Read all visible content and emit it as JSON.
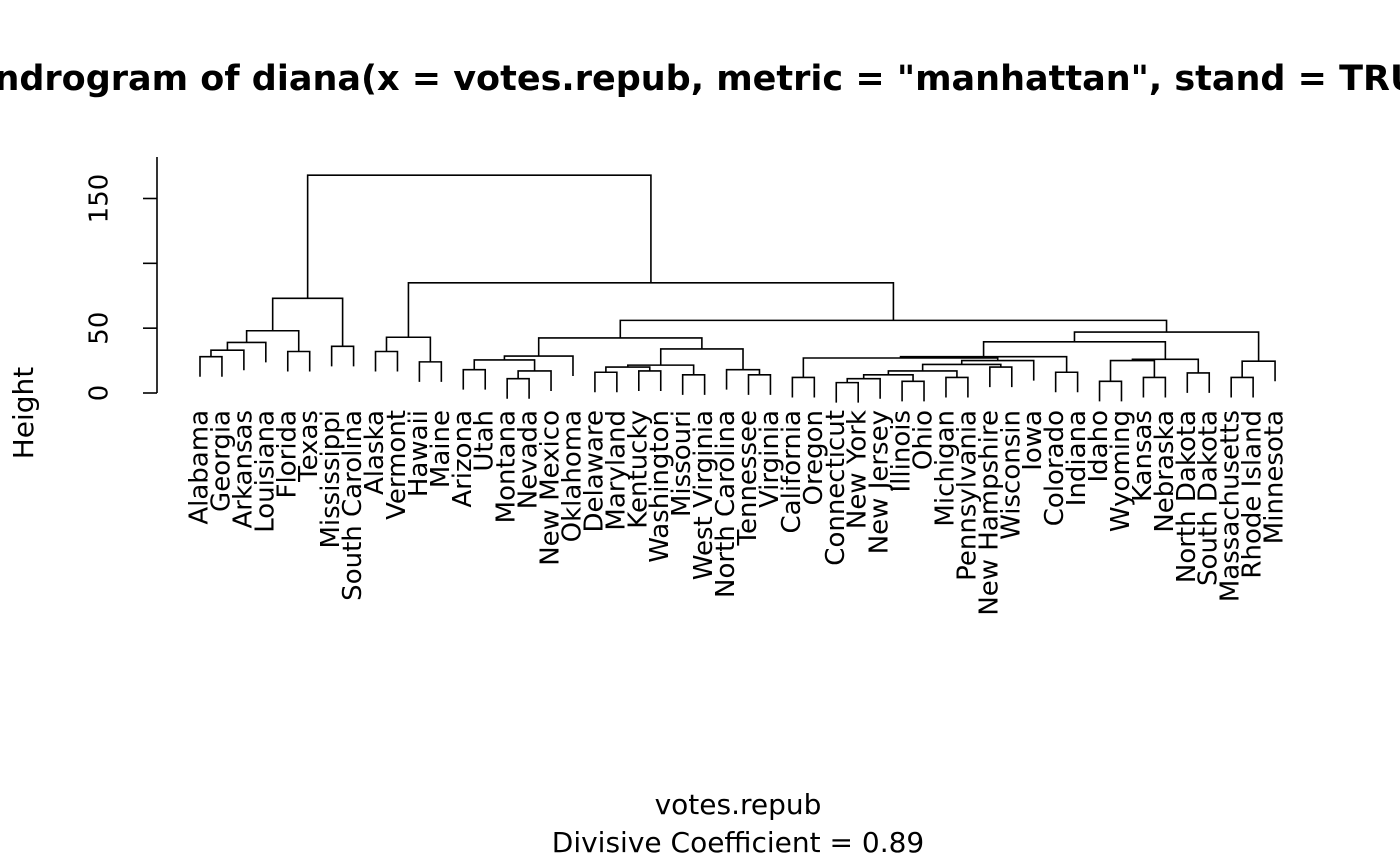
{
  "chart_data": {
    "type": "dendrogram",
    "title": "Dendrogram of  diana(x = votes.repub, metric = \"manhattan\", stand = TRUE)",
    "x_label": "votes.repub",
    "subtitle": "Divisive Coefficient =  0.89",
    "y_label": "Height",
    "ylim": [
      0,
      182
    ],
    "yticks": [
      0,
      50,
      {
        "value": 100,
        "label": null
      },
      150
    ],
    "color": "#000000",
    "tree": {
      "height": 168,
      "children": [
        {
          "height": 73,
          "children": [
            {
              "height": 48,
              "children": [
                {
                  "height": 39,
                  "children": [
                    {
                      "height": 33,
                      "children": [
                        {
                          "height": 28,
                          "children": [
                            {
                              "label": "Alabama"
                            },
                            {
                              "label": "Georgia"
                            }
                          ]
                        },
                        {
                          "label": "Arkansas"
                        }
                      ]
                    },
                    {
                      "label": "Louisiana"
                    }
                  ]
                },
                {
                  "height": 32,
                  "children": [
                    {
                      "label": "Florida"
                    },
                    {
                      "label": "Texas"
                    }
                  ]
                }
              ]
            },
            {
              "height": 36,
              "children": [
                {
                  "label": "Mississippi"
                },
                {
                  "label": "South Carolina"
                }
              ]
            }
          ]
        },
        {
          "height": 85,
          "children": [
            {
              "height": 43,
              "children": [
                {
                  "height": 32,
                  "children": [
                    {
                      "label": "Alaska"
                    },
                    {
                      "label": "Vermont"
                    }
                  ]
                },
                {
                  "height": 24,
                  "children": [
                    {
                      "label": "Hawaii"
                    },
                    {
                      "label": "Maine"
                    }
                  ]
                }
              ]
            },
            {
              "height": 56,
              "children": [
                {
                  "height": 42.5,
                  "children": [
                    {
                      "height": 28.5,
                      "children": [
                        {
                          "height": 25.5,
                          "children": [
                            {
                              "height": 18,
                              "children": [
                                {
                                  "label": "Arizona"
                                },
                                {
                                  "label": "Utah"
                                }
                              ]
                            },
                            {
                              "height": 17,
                              "children": [
                                {
                                  "height": 11,
                                  "children": [
                                    {
                                      "label": "Montana"
                                    },
                                    {
                                      "label": "Nevada"
                                    }
                                  ]
                                },
                                {
                                  "label": "New Mexico"
                                }
                              ]
                            }
                          ]
                        },
                        {
                          "label": "Oklahoma"
                        }
                      ]
                    },
                    {
                      "height": 34,
                      "children": [
                        {
                          "height": 21.5,
                          "children": [
                            {
                              "height": 20,
                              "children": [
                                {
                                  "height": 16,
                                  "children": [
                                    {
                                      "label": "Delaware"
                                    },
                                    {
                                      "label": "Maryland"
                                    }
                                  ]
                                },
                                {
                                  "height": 17,
                                  "children": [
                                    {
                                      "label": "Kentucky"
                                    },
                                    {
                                      "label": "Washington"
                                    }
                                  ]
                                }
                              ]
                            },
                            {
                              "height": 14,
                              "children": [
                                {
                                  "label": "Missouri"
                                },
                                {
                                  "label": "West Virginia"
                                }
                              ]
                            }
                          ]
                        },
                        {
                          "height": 18,
                          "children": [
                            {
                              "label": "North Carolina"
                            },
                            {
                              "height": 14,
                              "children": [
                                {
                                  "label": "Tennessee"
                                },
                                {
                                  "label": "Virginia"
                                }
                              ]
                            }
                          ]
                        }
                      ]
                    }
                  ]
                },
                {
                  "height": 47,
                  "children": [
                    {
                      "height": 39.5,
                      "children": [
                        {
                          "height": 28,
                          "children": [
                            {
                              "height": 27,
                              "children": [
                                {
                                  "height": 12,
                                  "children": [
                                    {
                                      "label": "California"
                                    },
                                    {
                                      "label": "Oregon"
                                    }
                                  ]
                                },
                                {
                                  "height": 25,
                                  "children": [
                                    {
                                      "height": 22,
                                      "children": [
                                        {
                                          "height": 17,
                                          "children": [
                                            {
                                              "height": 14,
                                              "children": [
                                                {
                                                  "height": 11,
                                                  "children": [
                                                    {
                                                      "height": 8,
                                                      "children": [
                                                        {
                                                          "label": "Connecticut"
                                                        },
                                                        {
                                                          "label": "New York"
                                                        }
                                                      ]
                                                    },
                                                    {
                                                      "label": "New Jersey"
                                                    }
                                                  ]
                                                },
                                                {
                                                  "height": 9,
                                                  "children": [
                                                    {
                                                      "label": "Illinois"
                                                    },
                                                    {
                                                      "label": "Ohio"
                                                    }
                                                  ]
                                                }
                                              ]
                                            },
                                            {
                                              "height": 12,
                                              "children": [
                                                {
                                                  "label": "Michigan"
                                                },
                                                {
                                                  "label": "Pennsylvania"
                                                }
                                              ]
                                            }
                                          ]
                                        },
                                        {
                                          "height": 20,
                                          "children": [
                                            {
                                              "label": "New Hampshire"
                                            },
                                            {
                                              "label": "Wisconsin"
                                            }
                                          ]
                                        }
                                      ]
                                    },
                                    {
                                      "label": "Iowa"
                                    }
                                  ]
                                }
                              ]
                            },
                            {
                              "height": 16,
                              "children": [
                                {
                                  "label": "Colorado"
                                },
                                {
                                  "label": "Indiana"
                                }
                              ]
                            }
                          ]
                        },
                        {
                          "height": 26,
                          "children": [
                            {
                              "height": 25,
                              "children": [
                                {
                                  "height": 9,
                                  "children": [
                                    {
                                      "label": "Idaho"
                                    },
                                    {
                                      "label": "Wyoming"
                                    }
                                  ]
                                },
                                {
                                  "height": 12,
                                  "children": [
                                    {
                                      "label": "Kansas"
                                    },
                                    {
                                      "label": "Nebraska"
                                    }
                                  ]
                                }
                              ]
                            },
                            {
                              "height": 15.5,
                              "children": [
                                {
                                  "label": "North Dakota"
                                },
                                {
                                  "label": "South Dakota"
                                }
                              ]
                            }
                          ]
                        }
                      ]
                    },
                    {
                      "height": 24.5,
                      "children": [
                        {
                          "height": 12,
                          "children": [
                            {
                              "label": "Massachusetts"
                            },
                            {
                              "label": "Rhode Island"
                            }
                          ]
                        },
                        {
                          "label": "Minnesota"
                        }
                      ]
                    }
                  ]
                }
              ]
            }
          ]
        }
      ]
    }
  }
}
